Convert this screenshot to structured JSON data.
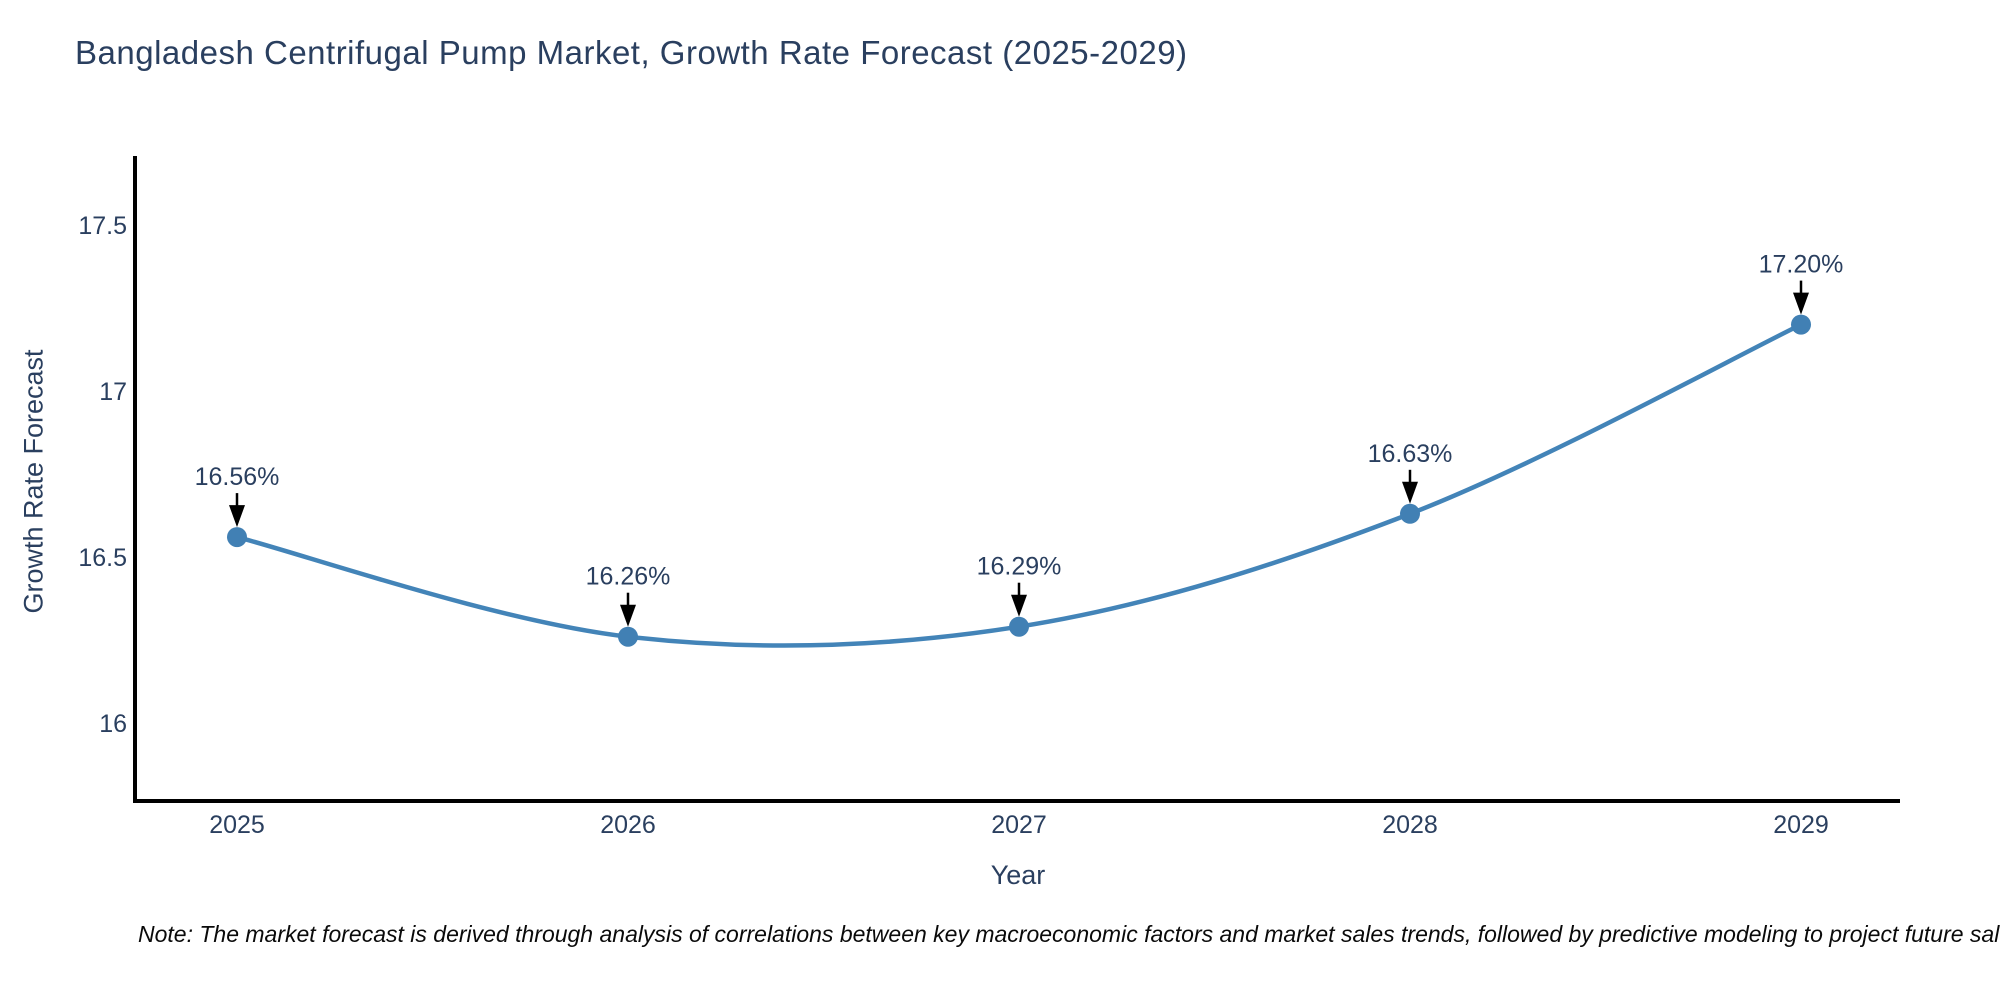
{
  "note": "Note: The market forecast is derived through analysis of correlations between key macroeconomic factors and market sales trends, followed by predictive modeling to project future sal",
  "chart_data": {
    "type": "line",
    "title": "Bangladesh Centrifugal Pump Market, Growth Rate Forecast (2025-2029)",
    "xlabel": "Year",
    "ylabel": "Growth Rate Forecast",
    "x": [
      2025,
      2026,
      2027,
      2028,
      2029
    ],
    "values": [
      16.56,
      16.26,
      16.29,
      16.63,
      17.2
    ],
    "point_labels": [
      "16.56%",
      "16.26%",
      "16.29%",
      "16.63%",
      "17.20%"
    ],
    "yticks": [
      16,
      16.5,
      17,
      17.5
    ],
    "ytick_labels": [
      "16",
      "16.5",
      "17",
      "17.5"
    ],
    "ylim": [
      15.77,
      17.7
    ],
    "grid": false,
    "legend": "none",
    "line_color": "#4384b8",
    "marker_color": "#4180b4",
    "arrow_color": "#000000",
    "axis_color": "#000000",
    "annotation_color": "#2a3f5f",
    "tick_color": "#2a3f5f",
    "text_color": "#2a3f5f"
  }
}
